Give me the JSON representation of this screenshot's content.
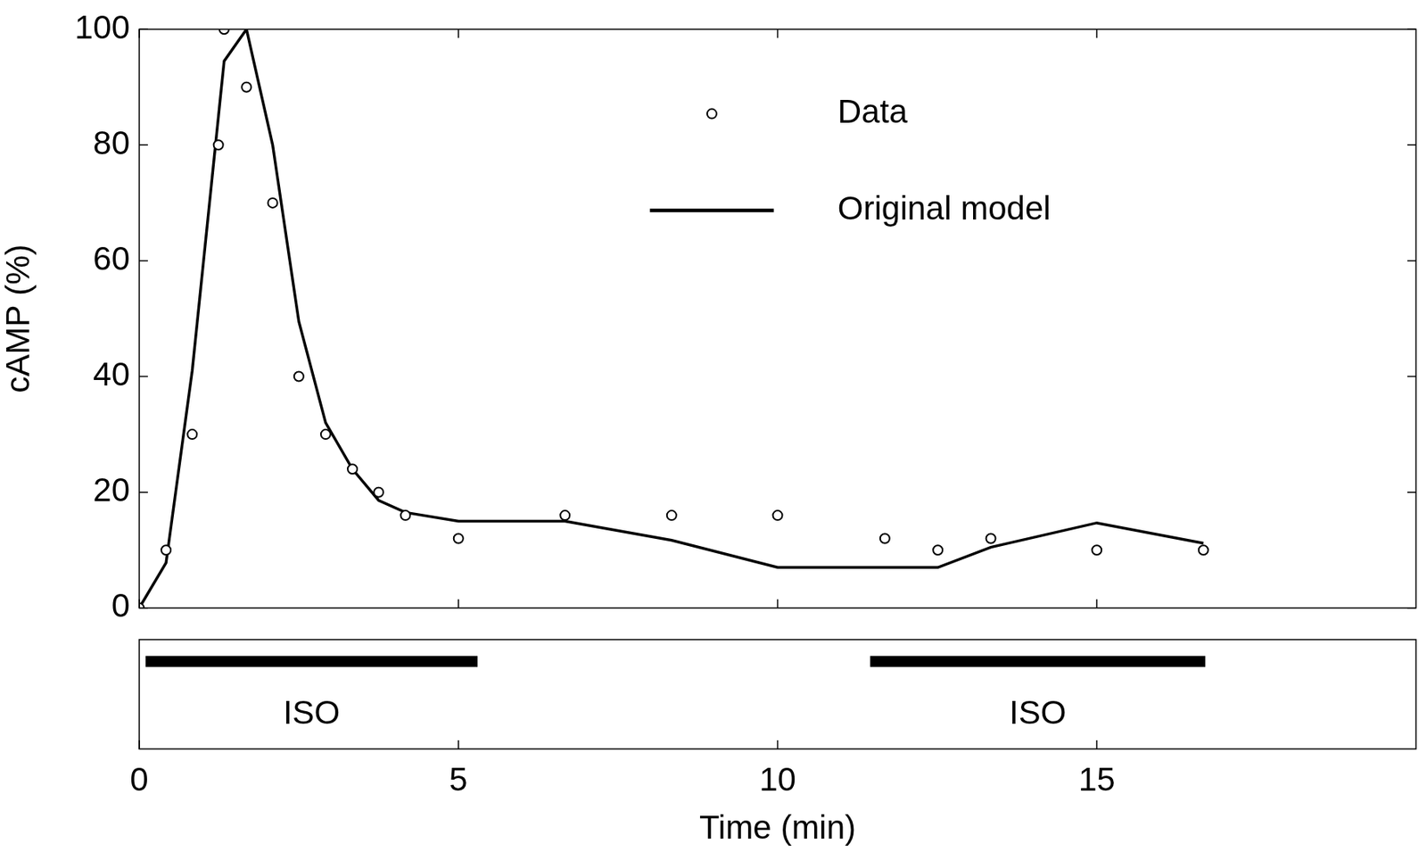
{
  "chart_data": {
    "type": "line",
    "xlabel": "Time (min)",
    "ylabel": "cAMP (%)",
    "xlim": [
      0,
      20
    ],
    "xticks": [
      0,
      5,
      10,
      15
    ],
    "ylim": [
      0,
      100
    ],
    "yticks": [
      0,
      20,
      40,
      60,
      80,
      100
    ],
    "grid": false,
    "legend": "top",
    "series": [
      {
        "name": "Data",
        "type": "scatter",
        "marker": "circle",
        "color": "#000000",
        "x": [
          0,
          0.42,
          0.83,
          1.24,
          1.33,
          1.68,
          2.09,
          2.5,
          2.92,
          3.34,
          3.75,
          4.17,
          5.0,
          6.67,
          8.34,
          10.0,
          11.68,
          12.51,
          13.34,
          15.0,
          16.67
        ],
        "values": [
          0,
          10,
          30,
          80,
          100,
          90,
          70,
          40,
          30,
          24,
          20,
          16,
          12,
          16,
          16,
          16,
          12,
          10,
          12,
          10,
          10
        ]
      },
      {
        "name": "Original model",
        "type": "line",
        "line_style": "solid",
        "color": "#000000",
        "x": [
          0,
          0.42,
          0.83,
          1.33,
          1.68,
          2.09,
          2.5,
          2.92,
          3.34,
          3.75,
          4.17,
          5.0,
          6.67,
          8.34,
          10.0,
          12.51,
          13.34,
          15.0,
          16.67
        ],
        "values": [
          0,
          7.8,
          41,
          94.5,
          100,
          80,
          49.5,
          32,
          24,
          18.6,
          16.5,
          15,
          15,
          11.7,
          7,
          7,
          10.5,
          14.7,
          11.2
        ]
      }
    ],
    "annotations": [
      {
        "text": "ISO",
        "x": [
          0.1,
          5.3
        ]
      },
      {
        "text": "ISO",
        "x": [
          11.45,
          16.7
        ]
      }
    ]
  }
}
